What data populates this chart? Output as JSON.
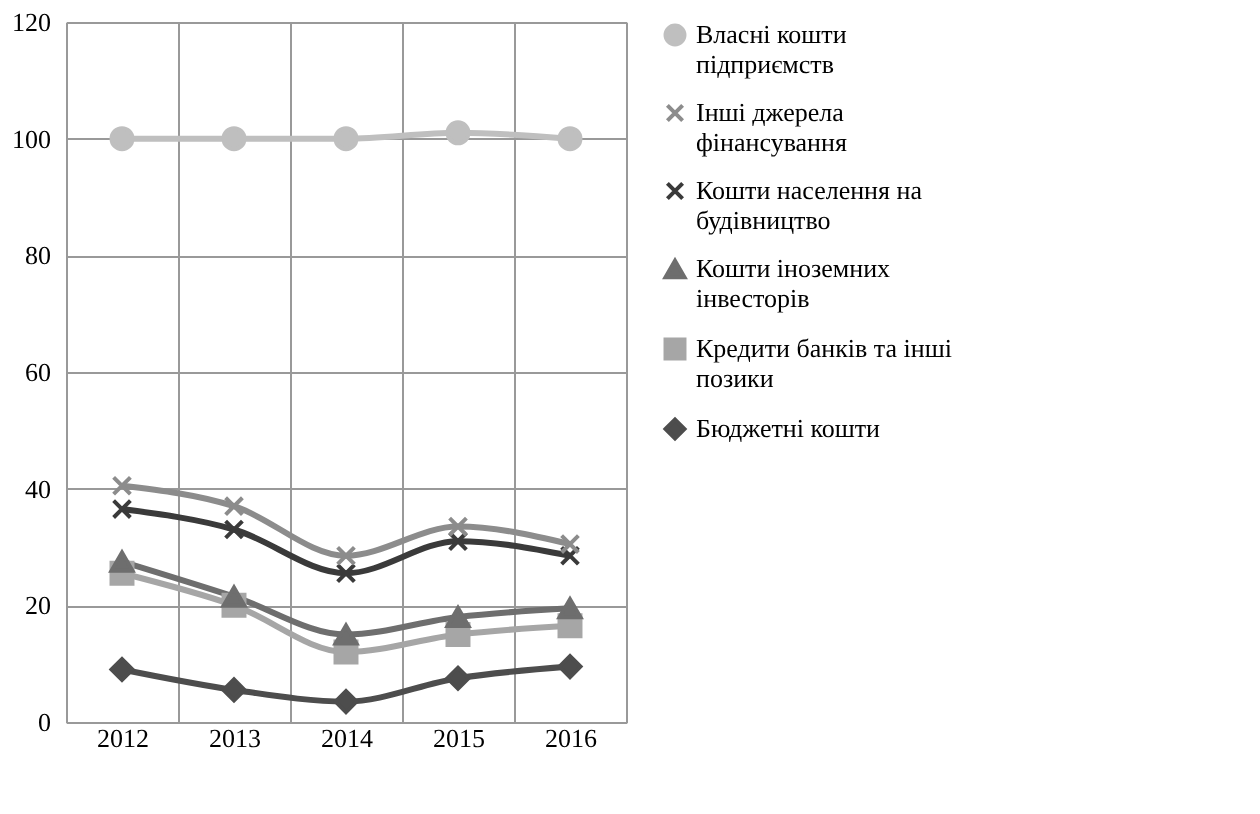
{
  "chart_data": {
    "type": "line",
    "categories": [
      "2012",
      "2013",
      "2014",
      "2015",
      "2016"
    ],
    "ylim": [
      0,
      120
    ],
    "yticks": [
      0,
      20,
      40,
      60,
      80,
      100,
      120
    ],
    "grid": true,
    "legend": "right",
    "series": [
      {
        "name": "Власні кошти підприємств",
        "color": "#bfbfbf",
        "marker": "circle",
        "values": [
          100,
          100,
          100,
          101,
          100
        ]
      },
      {
        "name": "Інші джерела фінансування",
        "color": "#8c8c8c",
        "marker": "cross",
        "values": [
          40.5,
          37,
          28.5,
          33.5,
          30.5
        ]
      },
      {
        "name": "Кошти населення на будівництво",
        "color": "#3a3a3a",
        "marker": "cross",
        "values": [
          36.5,
          33,
          25.5,
          31,
          28.5
        ]
      },
      {
        "name": "Кошти іноземних інвесторів",
        "color": "#6e6e6e",
        "marker": "triangle",
        "values": [
          27.5,
          21.5,
          15,
          18,
          19.5
        ]
      },
      {
        "name": "Кредити банків та інші позики",
        "color": "#a6a6a6",
        "marker": "square",
        "values": [
          25.5,
          20,
          12,
          15,
          16.5
        ]
      },
      {
        "name": "Бюджетні кошти",
        "color": "#4d4d4d",
        "marker": "diamond",
        "values": [
          9,
          5.5,
          3.5,
          7.5,
          9.5
        ]
      }
    ]
  }
}
